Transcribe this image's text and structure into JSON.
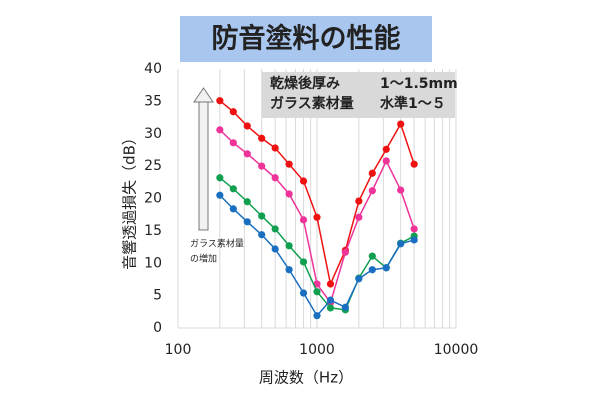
{
  "chart_data": {
    "type": "line",
    "title": "防音塗料の性能",
    "x_label": "周波数（Hz）",
    "y_label": "音響透過損失（dB）",
    "x_scale": "log",
    "x": [
      200,
      250,
      315,
      400,
      500,
      630,
      800,
      1000,
      1250,
      1600,
      2000,
      2500,
      3150,
      4000,
      5000
    ],
    "series": [
      {
        "color": "#ee1111",
        "values": [
          35.1,
          33.4,
          31.2,
          29.3,
          27.8,
          25.3,
          22.7,
          17.1,
          6.8,
          12.0,
          19.6,
          23.9,
          27.6,
          31.5,
          25.3
        ]
      },
      {
        "color": "#ee3399",
        "values": [
          30.6,
          28.6,
          26.9,
          25.0,
          23.2,
          20.7,
          16.7,
          6.8,
          3.9,
          11.7,
          17.1,
          21.2,
          25.8,
          21.3,
          15.3
        ]
      },
      {
        "color": "#11a050",
        "values": [
          23.2,
          21.5,
          19.5,
          17.3,
          15.3,
          12.7,
          10.2,
          5.6,
          3.1,
          2.8,
          7.7,
          11.1,
          9.3,
          13.1,
          14.2
        ]
      },
      {
        "color": "#1a6fc0",
        "values": [
          20.5,
          18.4,
          16.4,
          14.4,
          12.2,
          9.0,
          5.4,
          1.9,
          4.3,
          3.2,
          7.6,
          9.0,
          9.3,
          13.0,
          13.6
        ]
      }
    ],
    "xlim": [
      100,
      10000
    ],
    "xticks": [
      100,
      1000,
      10000
    ],
    "xgrid": [
      100,
      200,
      300,
      400,
      500,
      600,
      700,
      800,
      900,
      1000,
      2000,
      3000,
      4000,
      5000,
      6000,
      7000,
      8000,
      9000,
      10000
    ],
    "ylim": [
      0,
      40
    ],
    "yticks": [
      0,
      5,
      10,
      15,
      20,
      25,
      30,
      35,
      40
    ],
    "note": [
      [
        "乾燥後厚み",
        "1～1.5mm"
      ],
      [
        "ガラス素材量",
        "水準1～５"
      ]
    ],
    "arrow_label": [
      "ガラス素材量",
      "の増加"
    ]
  }
}
